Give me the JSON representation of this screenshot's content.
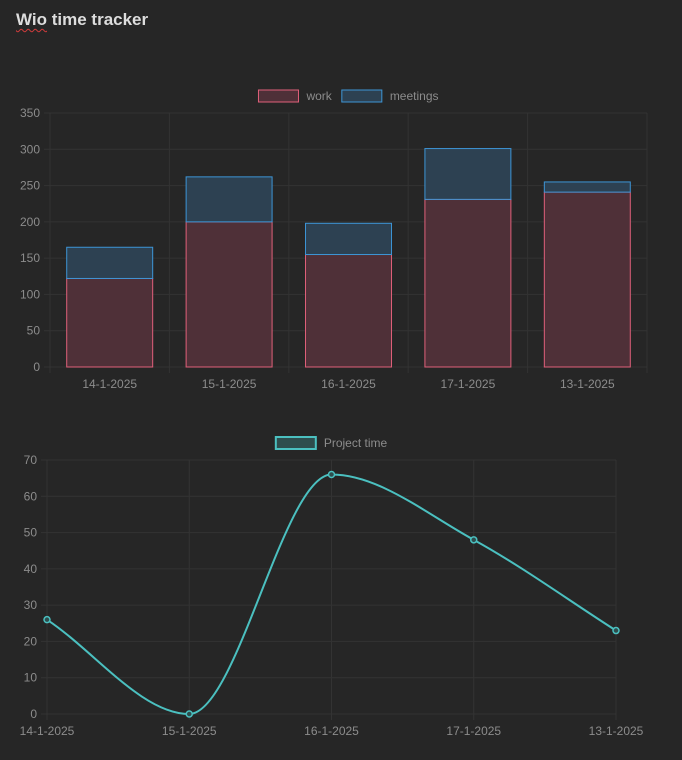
{
  "page": {
    "title_prefix": "Wio",
    "title_rest": " time tracker"
  },
  "chart_data": [
    {
      "type": "bar",
      "stacked": true,
      "categories": [
        "14-1-2025",
        "15-1-2025",
        "16-1-2025",
        "17-1-2025",
        "13-1-2025"
      ],
      "series": [
        {
          "name": "work",
          "values": [
            122,
            200,
            155,
            231,
            241
          ],
          "fill": "#4f3038",
          "stroke": "#e0607a"
        },
        {
          "name": "meetings",
          "values": [
            43,
            62,
            43,
            70,
            14
          ],
          "fill": "#2d4152",
          "stroke": "#3d95d6"
        }
      ],
      "ylim": [
        0,
        350
      ],
      "yticks": [
        0,
        50,
        100,
        150,
        200,
        250,
        300,
        350
      ],
      "legend": "top-center",
      "grid": true
    },
    {
      "type": "line",
      "smooth": true,
      "categories": [
        "14-1-2025",
        "15-1-2025",
        "16-1-2025",
        "17-1-2025",
        "13-1-2025"
      ],
      "series": [
        {
          "name": "Project time",
          "values": [
            26,
            0,
            66,
            48,
            23
          ],
          "stroke": "#4bc0c0",
          "fill": "#2e4d4d"
        }
      ],
      "ylim": [
        0,
        70
      ],
      "yticks": [
        0,
        10,
        20,
        30,
        40,
        50,
        60,
        70
      ],
      "legend": "top-center",
      "grid": true
    }
  ]
}
